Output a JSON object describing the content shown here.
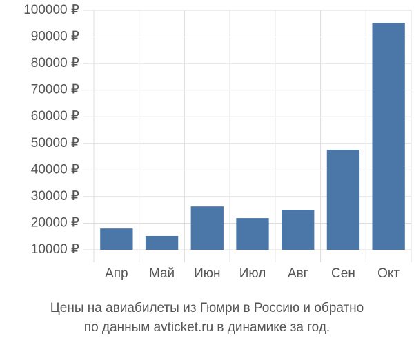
{
  "chart_data": {
    "type": "bar",
    "title": "Цены на авиабилеты из Гюмри в Россию и обратно",
    "subtitle": "по данным avticket.ru в динамике за год.",
    "categories": [
      "Апр",
      "Май",
      "Июн",
      "Июл",
      "Авг",
      "Сен",
      "Окт"
    ],
    "values": [
      18000,
      15200,
      26300,
      21900,
      25000,
      47600,
      95300
    ],
    "color": "#4a76a8",
    "ylim": [
      10000,
      100000
    ],
    "yticks": [
      {
        "value": 10000,
        "label": "10000 ₽"
      },
      {
        "value": 20000,
        "label": "20000 ₽"
      },
      {
        "value": 30000,
        "label": "30000 ₽"
      },
      {
        "value": 40000,
        "label": "40000 ₽"
      },
      {
        "value": 50000,
        "label": "50000 ₽"
      },
      {
        "value": 60000,
        "label": "60000 ₽"
      },
      {
        "value": 70000,
        "label": "70000 ₽"
      },
      {
        "value": 80000,
        "label": "80000 ₽"
      },
      {
        "value": 90000,
        "label": "90000 ₽"
      },
      {
        "value": 100000,
        "label": "100000 ₽"
      }
    ],
    "grid": true
  }
}
